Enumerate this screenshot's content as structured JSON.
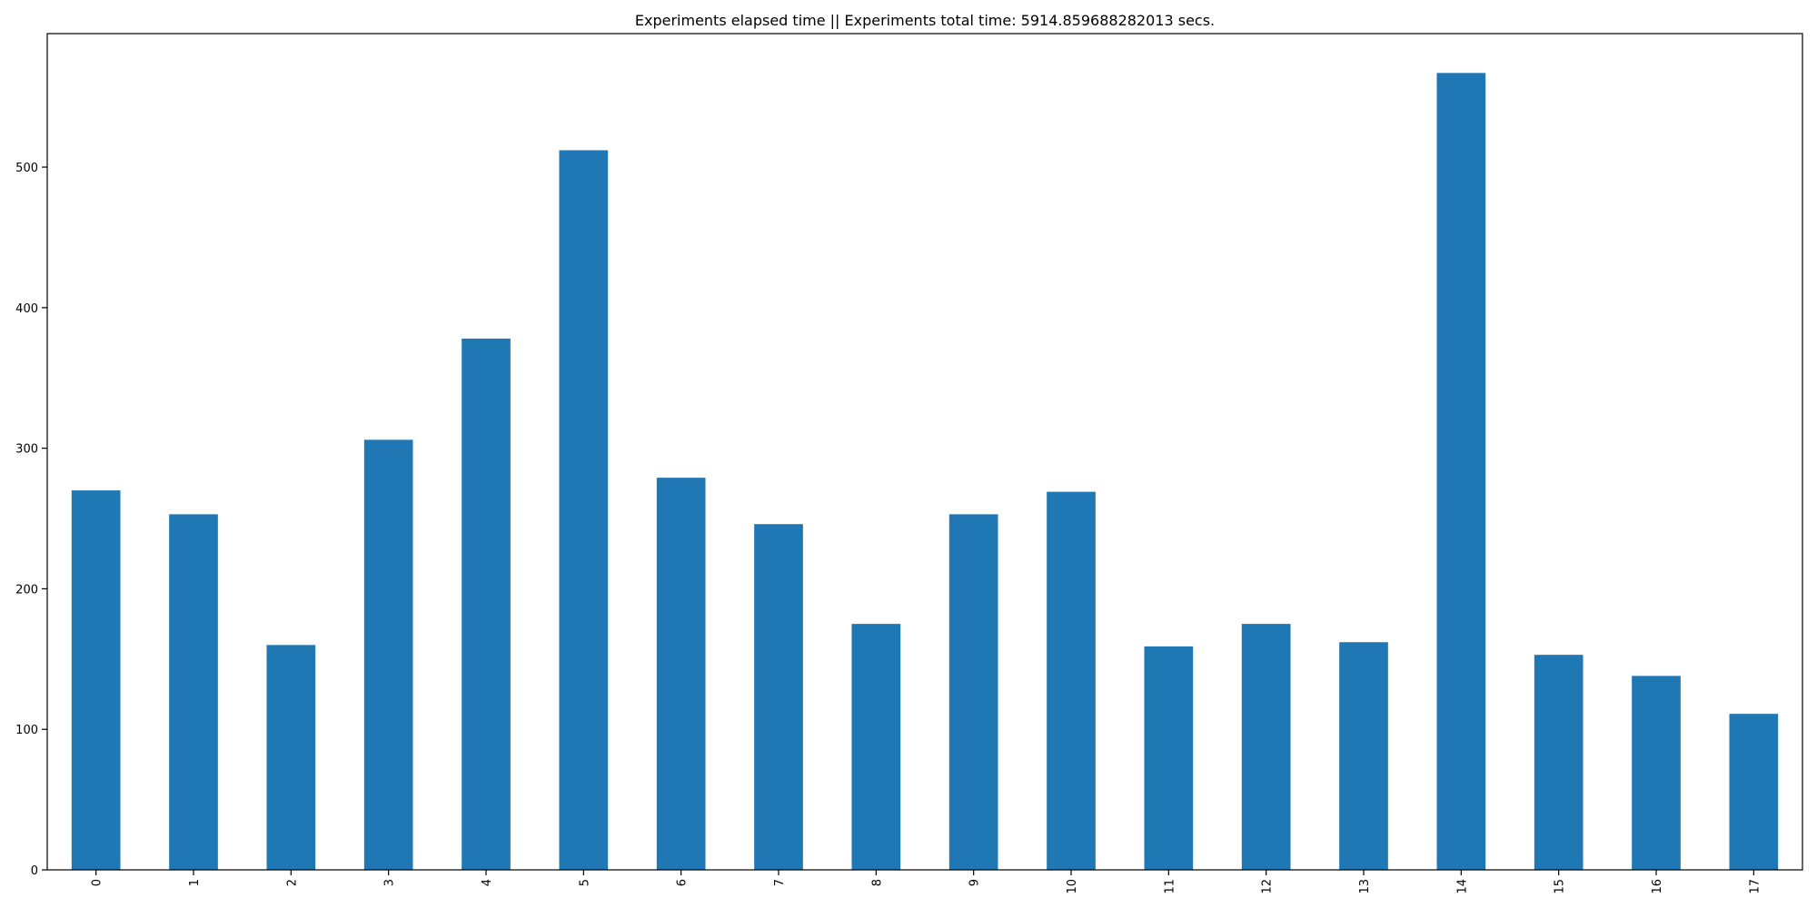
{
  "chart_data": {
    "type": "bar",
    "title": "Experiments elapsed time || Experiments total time: 5914.859688282013 secs.",
    "xlabel": "",
    "ylabel": "",
    "categories": [
      "0",
      "1",
      "2",
      "3",
      "4",
      "5",
      "6",
      "7",
      "8",
      "9",
      "10",
      "11",
      "12",
      "13",
      "14",
      "15",
      "16",
      "17"
    ],
    "values": [
      270,
      253,
      160,
      306,
      378,
      512,
      279,
      246,
      175,
      253,
      269,
      159,
      175,
      162,
      567,
      153,
      138,
      111
    ],
    "yticks": [
      0,
      100,
      200,
      300,
      400,
      500
    ],
    "ylim": [
      0,
      595
    ],
    "grid": false,
    "legend": "none",
    "bar_color": "#1f77b4",
    "axis_color": "#000000"
  }
}
